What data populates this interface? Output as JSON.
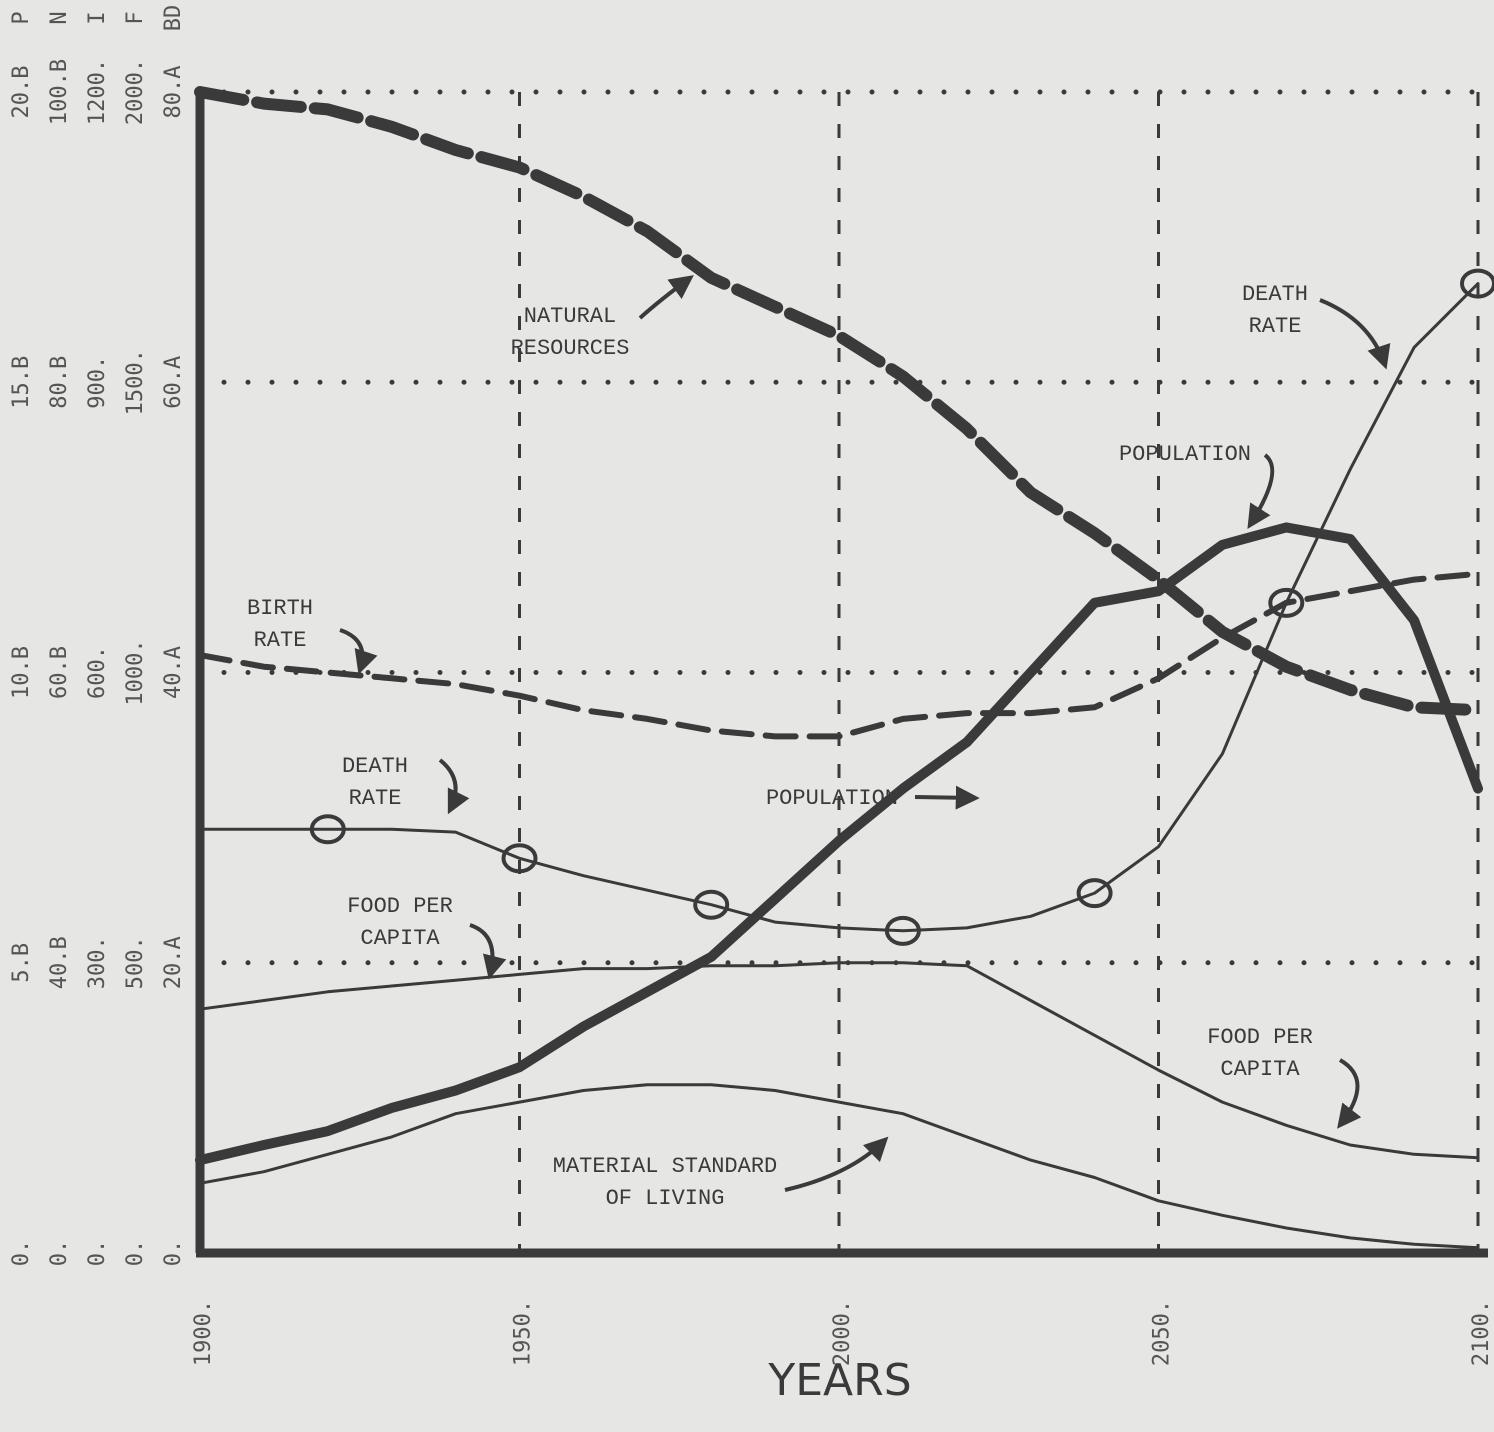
{
  "chart_data": {
    "type": "line",
    "x_label": "YEARS",
    "x": [
      1900,
      1910,
      1920,
      1930,
      1940,
      1950,
      1960,
      1970,
      1980,
      1990,
      2000,
      2010,
      2020,
      2030,
      2040,
      2050,
      2060,
      2070,
      2080,
      2090,
      2100
    ],
    "xlim": [
      1900,
      2100
    ],
    "xticks": [
      {
        "value": 1900,
        "label": "1900."
      },
      {
        "value": 1950,
        "label": "1950."
      },
      {
        "value": 2000,
        "label": "2000."
      },
      {
        "value": 2050,
        "label": "2050."
      },
      {
        "value": 2100,
        "label": "2100."
      }
    ],
    "ylim": [
      0,
      20
    ],
    "yticks": [
      0,
      5,
      10,
      15,
      20
    ],
    "y_scales": [
      {
        "name": "P",
        "labels": [
          "0.",
          "5.B",
          "10.B",
          "15.B",
          "20.B"
        ]
      },
      {
        "name": "N",
        "labels": [
          "0.",
          "40.B",
          "60.B",
          "80.B",
          "100.B"
        ]
      },
      {
        "name": "I",
        "labels": [
          "0.",
          "300.",
          "600.",
          "900.",
          "1200."
        ]
      },
      {
        "name": "F",
        "labels": [
          "0.",
          "500.",
          "1000.",
          "1500.",
          "2000."
        ]
      },
      {
        "name": "BD",
        "labels": [
          "0.",
          "20.A",
          "40.A",
          "60.A",
          "80.A"
        ]
      }
    ],
    "grid": true,
    "color": "#3a3a3a",
    "series": [
      {
        "linestyle": "dashed",
        "values": [
          20.0,
          19.8,
          19.7,
          19.4,
          19.0,
          18.7,
          18.2,
          17.6,
          16.8,
          16.3,
          15.8,
          15.1,
          14.2,
          13.1,
          12.4,
          11.6,
          10.7,
          10.1,
          9.7,
          9.4,
          9.35
        ]
      },
      {
        "linestyle": "solid",
        "values": [
          1.6,
          1.86,
          2.1,
          2.5,
          2.8,
          3.2,
          3.9,
          4.5,
          5.1,
          6.1,
          7.1,
          8.0,
          8.8,
          10.0,
          11.2,
          11.4,
          12.2,
          12.5,
          12.3,
          10.9,
          8.0
        ]
      },
      {
        "linestyle": "dashed",
        "values": [
          10.3,
          10.1,
          10.0,
          9.9,
          9.8,
          9.6,
          9.35,
          9.2,
          9.0,
          8.9,
          8.9,
          9.2,
          9.3,
          9.3,
          9.4,
          9.9,
          10.6,
          11.2,
          11.4,
          11.6,
          11.7
        ]
      },
      {
        "linestyle": "circles",
        "values": [
          7.3,
          7.3,
          7.3,
          7.3,
          7.25,
          6.8,
          6.5,
          6.25,
          6.0,
          5.7,
          5.6,
          5.55,
          5.6,
          5.8,
          6.2,
          7.0,
          8.6,
          11.2,
          13.5,
          15.6,
          16.7
        ]
      },
      {
        "linestyle": "solid",
        "values": [
          4.2,
          4.35,
          4.5,
          4.6,
          4.7,
          4.8,
          4.9,
          4.9,
          4.95,
          4.95,
          5.0,
          5.0,
          4.95,
          4.35,
          3.75,
          3.15,
          2.6,
          2.2,
          1.86,
          1.7,
          1.64
        ]
      },
      {
        "linestyle": "solid",
        "values": [
          1.2,
          1.4,
          1.7,
          2.0,
          2.4,
          2.6,
          2.8,
          2.9,
          2.9,
          2.8,
          2.6,
          2.4,
          2.0,
          1.6,
          1.3,
          0.9,
          0.65,
          0.43,
          0.26,
          0.15,
          0.09
        ]
      }
    ],
    "annotations": [
      {
        "series": 0,
        "lines": [
          "NATURAL",
          "RESOURCES"
        ]
      },
      {
        "series": 2,
        "lines": [
          "BIRTH",
          "RATE"
        ]
      },
      {
        "series": 3,
        "lines": [
          "DEATH",
          "RATE"
        ]
      },
      {
        "series": 3,
        "lines": [
          "DEATH",
          "RATE"
        ]
      },
      {
        "series": 1,
        "lines": [
          "POPULATION"
        ]
      },
      {
        "series": 1,
        "lines": [
          "POPULATION"
        ]
      },
      {
        "series": 4,
        "lines": [
          "FOOD PER",
          "CAPITA"
        ]
      },
      {
        "series": 4,
        "lines": [
          "FOOD PER",
          "CAPITA"
        ]
      },
      {
        "series": 5,
        "lines": [
          "MATERIAL STANDARD",
          "OF LIVING"
        ]
      }
    ]
  }
}
